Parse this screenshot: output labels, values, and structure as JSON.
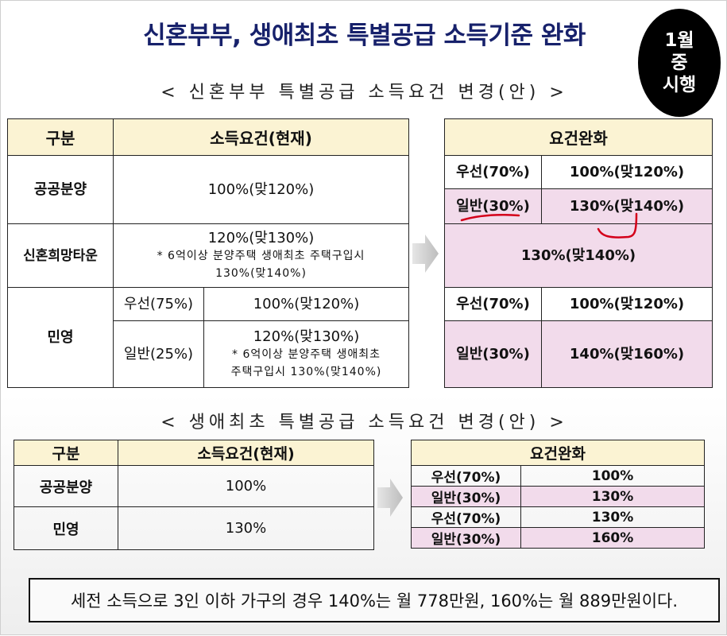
{
  "title": "신혼부부, 생애최초 특별공급 소득기준 완화",
  "badge": [
    "1월",
    "중",
    "시행"
  ],
  "section1": {
    "heading": "< 신혼부부 특별공급 소득요건 변경(안) >",
    "current": {
      "headers": [
        "구분",
        "소득요건(현재)"
      ],
      "public": {
        "label": "공공분양",
        "value": "100%(맞120%)"
      },
      "hope_town": {
        "label": "신혼희망타운",
        "value": "120%(맞130%)",
        "note1": "* 6억이상 분양주택 생애최초 주택구입시",
        "note2": "130%(맞140%)"
      },
      "private": {
        "label": "민영",
        "priority": {
          "label": "우선(75%)",
          "value": "100%(맞120%)"
        },
        "general": {
          "label": "일반(25%)",
          "value": "120%(맞130%)",
          "note1": "* 6억이상 분양주택 생애최초",
          "note2": "주택구입시 130%(맞140%)"
        }
      }
    },
    "relaxed": {
      "header": "요건완화",
      "public_priority": {
        "label": "우선(70%)",
        "value": "100%(맞120%)"
      },
      "public_general": {
        "label": "일반(30%)",
        "value": "130%(맞140%)"
      },
      "hope_town": "130%(맞140%)",
      "private_priority": {
        "label": "우선(70%)",
        "value": "100%(맞120%)"
      },
      "private_general": {
        "label": "일반(30%)",
        "value": "140%(맞160%)"
      }
    }
  },
  "section2": {
    "heading": "< 생애최초 특별공급 소득요건 변경(안) >",
    "current": {
      "headers": [
        "구분",
        "소득요건(현재)"
      ],
      "rows": [
        {
          "label": "공공분양",
          "value": "100%"
        },
        {
          "label": "민영",
          "value": "130%"
        }
      ]
    },
    "relaxed": {
      "header": "요건완화",
      "rows": [
        {
          "label": "우선(70%)",
          "value": "100%"
        },
        {
          "label": "일반(30%)",
          "value": "130%"
        },
        {
          "label": "우선(70%)",
          "value": "130%"
        },
        {
          "label": "일반(30%)",
          "value": "160%"
        }
      ]
    }
  },
  "footer": "세전 소득으로 3인 이하 가구의 경우 140%는 월 778만원, 160%는 월 889만원이다.",
  "colors": {
    "title": "#17216b",
    "header_bg": "#fbf3d3",
    "highlight_pink": "#f2dbeb",
    "annotation_red": "#d4001a"
  }
}
